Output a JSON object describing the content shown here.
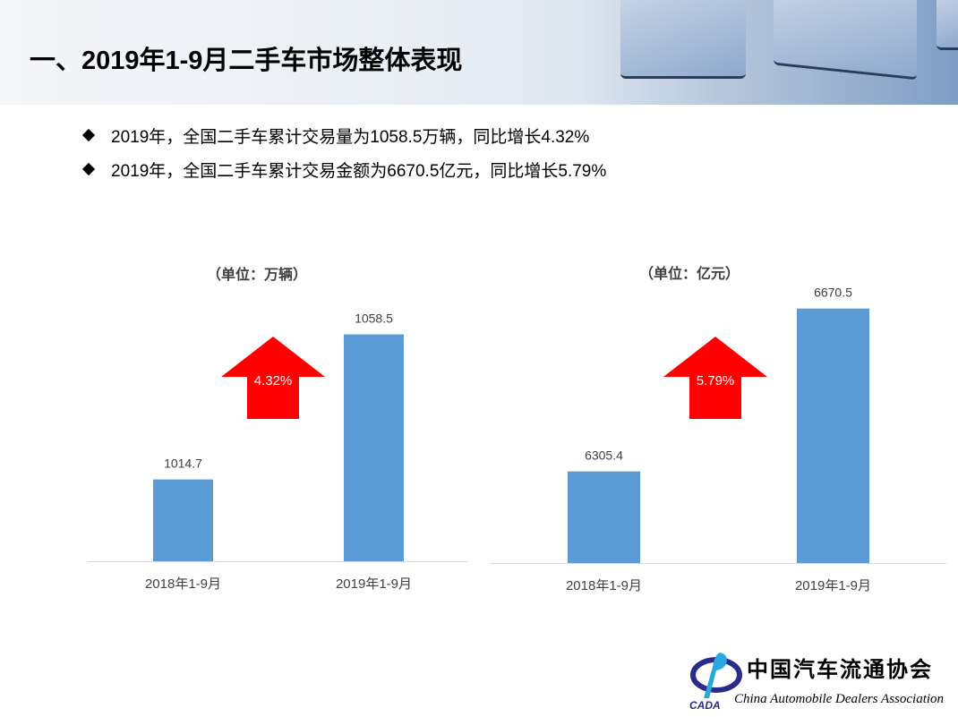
{
  "header": {
    "title": "一、2019年1-9月二手车市场整体表现"
  },
  "bullets": [
    "2019年，全国二手车累计交易量为1058.5万辆，同比增长4.32%",
    "2019年，全国二手车累计交易金额为6670.5亿元，同比增长5.79%"
  ],
  "logo": {
    "cn": "中国汽车流通协会",
    "en": "China Automobile Dealers Association",
    "abbr": "CADA"
  },
  "colors": {
    "bar": "#5b9bd5",
    "arrow": "#ff0000",
    "text": "#404040"
  },
  "chart_data": [
    {
      "type": "bar",
      "unit_label": "（单位：万辆）",
      "categories": [
        "2018年1-9月",
        "2019年1-9月"
      ],
      "values": [
        1014.7,
        1058.5
      ],
      "data_labels": [
        "1014.7",
        "1058.5"
      ],
      "growth_label": "4.32%",
      "ylim": [
        990,
        1070
      ],
      "grid": false
    },
    {
      "type": "bar",
      "unit_label": "（单位：亿元）",
      "categories": [
        "2018年1-9月",
        "2019年1-9月"
      ],
      "values": [
        6305.4,
        6670.5
      ],
      "data_labels": [
        "6305.4",
        "6670.5"
      ],
      "growth_label": "5.79%",
      "ylim": [
        6100,
        6700
      ],
      "grid": false
    }
  ]
}
